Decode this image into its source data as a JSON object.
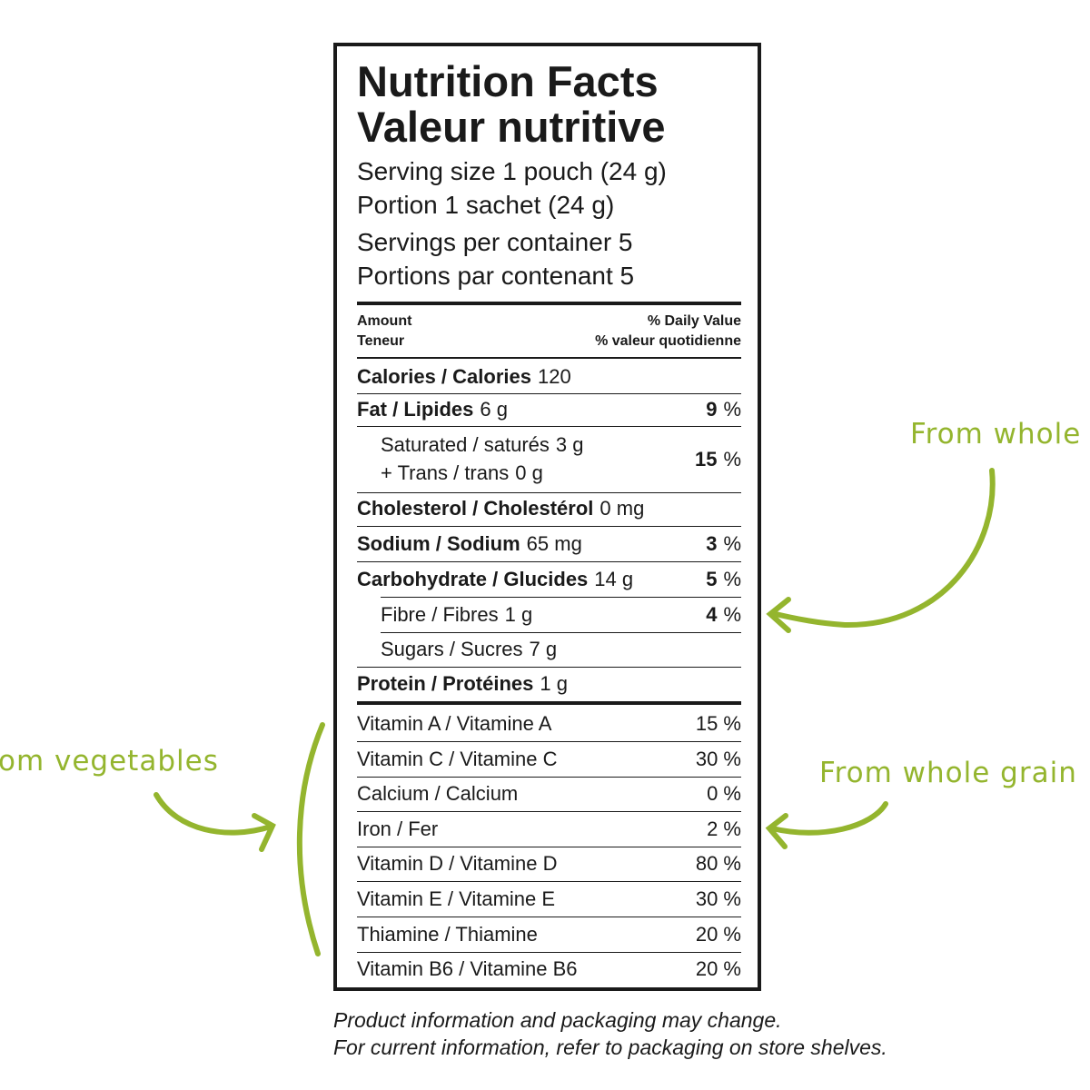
{
  "label": {
    "title": [
      "Nutrition Facts",
      "Valeur nutritive"
    ],
    "serving": [
      "Serving size 1 pouch (24 g)",
      "Portion 1 sachet (24 g)",
      "Servings per container 5",
      "Portions par contenant 5"
    ],
    "header": {
      "amount": [
        "Amount",
        "Teneur"
      ],
      "daily_value": [
        "% Daily Value",
        "% valeur quotidienne"
      ]
    },
    "nutrients": [
      {
        "lines": [
          {
            "name": "Calories / Calories",
            "amount": "120"
          }
        ]
      },
      {
        "lines": [
          {
            "name": "Fat / Lipides",
            "amount": "6 g"
          }
        ],
        "daily_value": {
          "value": "9",
          "unit": "%"
        }
      },
      {
        "lines": [
          {
            "name": "Saturated / saturés",
            "amount": "3 g"
          },
          {
            "name": "+ Trans / trans",
            "amount": "0 g"
          }
        ],
        "daily_value": {
          "value": "15",
          "unit": "%"
        }
      },
      {
        "lines": [
          {
            "name": "Cholesterol / Cholestérol",
            "amount": "0 mg"
          }
        ]
      },
      {
        "lines": [
          {
            "name": "Sodium / Sodium",
            "amount": "65 mg"
          }
        ],
        "daily_value": {
          "value": "3",
          "unit": "%"
        }
      },
      {
        "lines": [
          {
            "name": "Carbohydrate / Glucides",
            "amount": "14 g"
          }
        ],
        "daily_value": {
          "value": "5",
          "unit": "%"
        }
      },
      {
        "lines": [
          {
            "name": "Fibre / Fibres",
            "amount": "1 g"
          }
        ],
        "daily_value": {
          "value": "4",
          "unit": "%"
        }
      },
      {
        "lines": [
          {
            "name": "Sugars / Sucres",
            "amount": "7 g"
          }
        ]
      },
      {
        "lines": [
          {
            "name": "Protein / Protéines",
            "amount": "1 g"
          }
        ]
      }
    ],
    "vitamins": [
      {
        "name": "Vitamin A / Vitamine A",
        "daily_value": "15 %"
      },
      {
        "name": "Vitamin C / Vitamine C",
        "daily_value": "30 %"
      },
      {
        "name": "Calcium / Calcium",
        "daily_value": "0 %"
      },
      {
        "name": "Iron / Fer",
        "daily_value": "2 %"
      },
      {
        "name": "Vitamin D / Vitamine D",
        "daily_value": "80 %"
      },
      {
        "name": "Vitamin E / Vitamine E",
        "daily_value": "30 %"
      },
      {
        "name": "Thiamine / Thiamine",
        "daily_value": "20 %"
      },
      {
        "name": "Vitamin B6 / Vitamine B6",
        "daily_value": "20 %"
      }
    ]
  },
  "annotations": [
    "From whole",
    "om vegetables",
    "From whole grain"
  ],
  "footer": [
    "Product information and packaging may change.",
    "For current information, refer to packaging on store shelves."
  ]
}
